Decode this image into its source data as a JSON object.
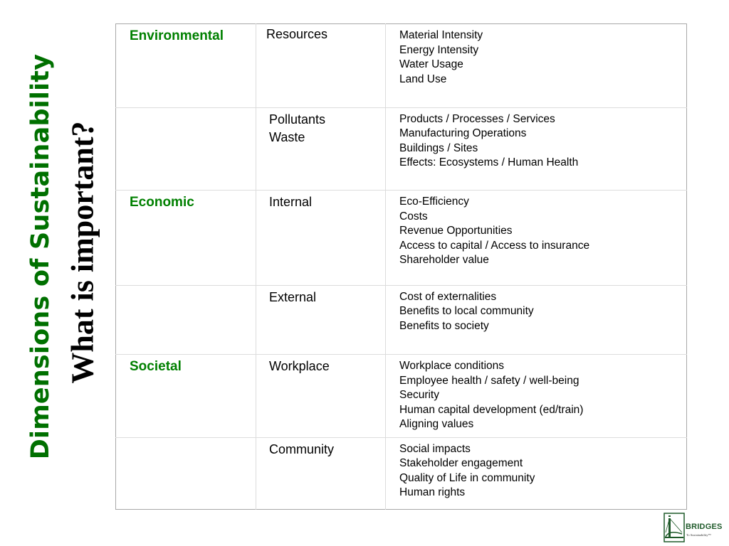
{
  "title": "Dimensions of Sustainability",
  "subtitle": "What is important?",
  "rows": [
    {
      "dimension": "Environmental",
      "sub": [
        "Resources"
      ],
      "items": [
        "Material Intensity",
        "Energy Intensity",
        "Water Usage",
        "Land Use"
      ]
    },
    {
      "dimension": "",
      "sub": [
        "Pollutants",
        "Waste"
      ],
      "items": [
        "Products / Processes / Services",
        "Manufacturing Operations",
        "Buildings / Sites",
        "Effects: Ecosystems / Human Health"
      ]
    },
    {
      "dimension": "Economic",
      "sub": [
        "Internal"
      ],
      "items": [
        "Eco-Efficiency",
        "Costs",
        "Revenue Opportunities",
        "Access to capital / Access to insurance",
        "Shareholder value"
      ]
    },
    {
      "dimension": "",
      "sub": [
        "External"
      ],
      "items": [
        "Cost of externalities",
        "Benefits to local community",
        "Benefits to society"
      ]
    },
    {
      "dimension": "Societal",
      "sub": [
        "Workplace"
      ],
      "items": [
        "Workplace conditions",
        "Employee health / safety / well-being",
        "Security",
        "Human capital development (ed/train)",
        "Aligning values"
      ]
    },
    {
      "dimension": "",
      "sub": [
        "Community"
      ],
      "items": [
        "Social impacts",
        "Stakeholder engagement",
        "Quality of Life in community",
        "Human rights"
      ]
    }
  ],
  "logo": {
    "name": "BRIDGES",
    "tagline": "To Sustainability™",
    "icon": "bridge-icon"
  },
  "colors": {
    "title": "#007000",
    "dimension_label": "#008000",
    "logo": "#1f5a2a"
  }
}
